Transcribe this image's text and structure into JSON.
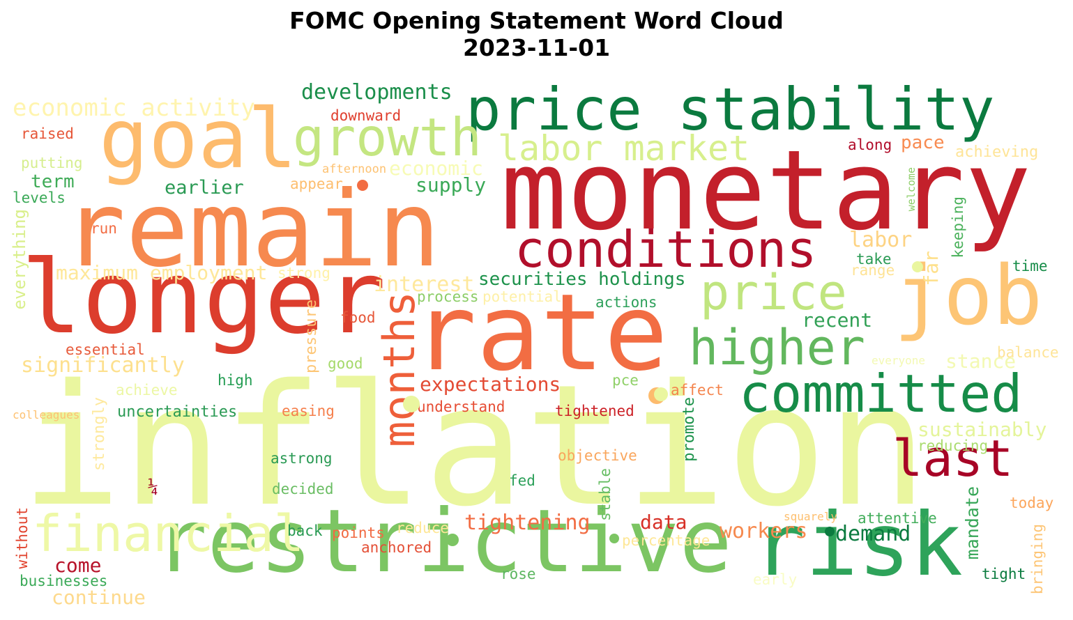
{
  "title_line1": "FOMC Opening Statement Word Cloud",
  "title_line2": "2023-11-01",
  "words": [
    {
      "text": "inflation",
      "color": "#eaf69f"
    },
    {
      "text": "monetary",
      "color": "#c3202b"
    },
    {
      "text": "rate",
      "color": "#f26d43"
    },
    {
      "text": "remain",
      "color": "#f6894f"
    },
    {
      "text": "longer",
      "color": "#dc3d2d"
    },
    {
      "text": "restrictive",
      "color": "#7cc563"
    },
    {
      "text": "risk",
      "color": "#2ea35a"
    },
    {
      "text": "price stability",
      "color": "#0b7a3f"
    },
    {
      "text": "goal",
      "color": "#fdbb6d"
    },
    {
      "text": "job",
      "color": "#fdc575"
    },
    {
      "text": "growth",
      "color": "#c4e681"
    },
    {
      "text": "conditions",
      "color": "#b10f2b"
    },
    {
      "text": "committed",
      "color": "#168c48"
    },
    {
      "text": "price",
      "color": "#c0e57f"
    },
    {
      "text": "higher",
      "color": "#62b75e"
    },
    {
      "text": "financial",
      "color": "#eef8a6"
    },
    {
      "text": "months",
      "color": "#ee5f3a"
    },
    {
      "text": "last",
      "color": "#a70426"
    },
    {
      "text": "labor market",
      "color": "#d7ef8d"
    },
    {
      "text": "economic activity",
      "color": "#fff4ae"
    },
    {
      "text": "developments",
      "color": "#1a8e4a"
    },
    {
      "text": "maximum employment",
      "color": "#fee799"
    },
    {
      "text": "securities holdings",
      "color": "#1d924b"
    },
    {
      "text": "expectations",
      "color": "#e34a33"
    },
    {
      "text": "tightening",
      "color": "#f26c43"
    },
    {
      "text": "significantly",
      "color": "#fde08e"
    },
    {
      "text": "interest",
      "color": "#fee89c"
    },
    {
      "text": "economic",
      "color": "#f7fbb5"
    },
    {
      "text": "supply",
      "color": "#3aa957"
    },
    {
      "text": "earlier",
      "color": "#2a9a54"
    },
    {
      "text": "term",
      "color": "#3fab57"
    },
    {
      "text": "labor",
      "color": "#fdd383"
    },
    {
      "text": "recent",
      "color": "#31a055"
    },
    {
      "text": "pace",
      "color": "#f88b51"
    },
    {
      "text": "sustainably",
      "color": "#e4f49a"
    },
    {
      "text": "stance",
      "color": "#f3f9b2"
    },
    {
      "text": "workers",
      "color": "#f68a4f"
    },
    {
      "text": "demand",
      "color": "#0b7b3f"
    },
    {
      "text": "data",
      "color": "#d73027"
    },
    {
      "text": "come",
      "color": "#b7132a"
    },
    {
      "text": "continue",
      "color": "#fdd98c"
    },
    {
      "text": "mandate",
      "color": "#36a657"
    },
    {
      "text": "uncertainties",
      "color": "#2a9a54"
    },
    {
      "text": "achieving",
      "color": "#fee497"
    },
    {
      "text": "along",
      "color": "#b10d2a"
    },
    {
      "text": "downward",
      "color": "#e0402f"
    },
    {
      "text": "raised",
      "color": "#e65638"
    },
    {
      "text": "putting",
      "color": "#d6ee8e"
    },
    {
      "text": "levels",
      "color": "#3aa957"
    },
    {
      "text": "afternoon",
      "color": "#fdc272"
    },
    {
      "text": "appear",
      "color": "#fdbe6e"
    },
    {
      "text": "run",
      "color": "#f26c43"
    },
    {
      "text": "everything",
      "color": "#d9ef8b"
    },
    {
      "text": "strong",
      "color": "#fff1a8"
    },
    {
      "text": "essential",
      "color": "#e75a3a"
    },
    {
      "text": "process",
      "color": "#8ccd67"
    },
    {
      "text": "potential",
      "color": "#fef0a7"
    },
    {
      "text": "pressure",
      "color": "#fdc574"
    },
    {
      "text": "food",
      "color": "#e65638"
    },
    {
      "text": "actions",
      "color": "#2da05a"
    },
    {
      "text": "take",
      "color": "#2a9a54"
    },
    {
      "text": "range",
      "color": "#fee395"
    },
    {
      "text": "far",
      "color": "#fee08b"
    },
    {
      "text": "keeping",
      "color": "#4ab15b"
    },
    {
      "text": "welcome",
      "color": "#8ccd67"
    },
    {
      "text": "time",
      "color": "#168c48"
    },
    {
      "text": "balance",
      "color": "#fee497"
    },
    {
      "text": "everyone",
      "color": "#f3f9b2"
    },
    {
      "text": "good",
      "color": "#a5d96a"
    },
    {
      "text": "high",
      "color": "#249d53"
    },
    {
      "text": "pce",
      "color": "#8fd068"
    },
    {
      "text": "achieve",
      "color": "#ecf7a4"
    },
    {
      "text": "colleagues",
      "color": "#fdc171"
    },
    {
      "text": "strongly",
      "color": "#fee99d"
    },
    {
      "text": "easing",
      "color": "#f57f4b"
    },
    {
      "text": "understand",
      "color": "#e64d34"
    },
    {
      "text": "tightened",
      "color": "#cc2127"
    },
    {
      "text": "affect",
      "color": "#f4844d"
    },
    {
      "text": "promote",
      "color": "#1d924b"
    },
    {
      "text": "reducing",
      "color": "#a9db6d"
    },
    {
      "text": "astrong",
      "color": "#2a9a54"
    },
    {
      "text": "objective",
      "color": "#f9a65d"
    },
    {
      "text": "¼",
      "color": "#a50026"
    },
    {
      "text": "fed",
      "color": "#2da05a"
    },
    {
      "text": "decided",
      "color": "#6abd63"
    },
    {
      "text": "stable",
      "color": "#66bd63"
    },
    {
      "text": "without",
      "color": "#e1442f"
    },
    {
      "text": "today",
      "color": "#fca65c"
    },
    {
      "text": "squarely",
      "color": "#fdbf6f"
    },
    {
      "text": "attentive",
      "color": "#42ad5a"
    },
    {
      "text": "back",
      "color": "#2a9a54"
    },
    {
      "text": "points",
      "color": "#f16a42"
    },
    {
      "text": "reduce",
      "color": "#fee797"
    },
    {
      "text": "anchored",
      "color": "#e45037"
    },
    {
      "text": "percentage",
      "color": "#fee797"
    },
    {
      "text": "businesses",
      "color": "#3aa957"
    },
    {
      "text": "rose",
      "color": "#5cb660"
    },
    {
      "text": "early",
      "color": "#f9fcc4"
    },
    {
      "text": "tight",
      "color": "#0b7b3f"
    },
    {
      "text": "bringing",
      "color": "#fdc575"
    }
  ],
  "dots": [
    "#f26d43",
    "#eaf69f",
    "#fdbb6d",
    "#7cc563",
    "#0b7b3f",
    "#eaf69f",
    "#7cc563",
    "#eaf69f"
  ]
}
